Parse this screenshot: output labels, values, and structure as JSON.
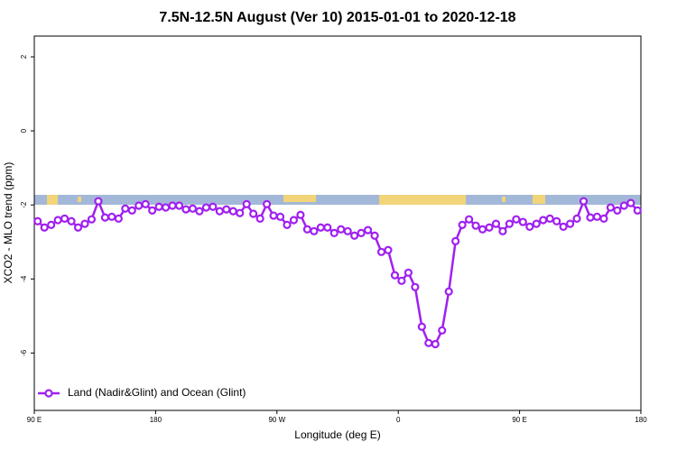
{
  "chart_data": {
    "type": "line",
    "title": "7.5N-12.5N August (Ver 10)   2015-01-01 to 2020-12-18",
    "x_label": "Longitude (deg E)",
    "y_label": "XCO2 - MLO trend (ppm)",
    "x": [
      92.5,
      97.5,
      102.5,
      107.5,
      112.5,
      117.5,
      122.5,
      127.5,
      132.5,
      137.5,
      142.5,
      147.5,
      152.5,
      157.5,
      162.5,
      167.5,
      172.5,
      177.5,
      182.5,
      187.5,
      192.5,
      197.5,
      202.5,
      207.5,
      212.5,
      217.5,
      222.5,
      227.5,
      232.5,
      237.5,
      242.5,
      247.5,
      252.5,
      257.5,
      262.5,
      267.5,
      272.5,
      277.5,
      282.5,
      287.5,
      292.5,
      297.5,
      302.5,
      307.5,
      312.5,
      317.5,
      322.5,
      327.5,
      332.5,
      337.5,
      342.5,
      347.5,
      352.5,
      357.5,
      362.5,
      367.5,
      372.5,
      377.5,
      382.5,
      387.5,
      392.5,
      397.5,
      402.5,
      407.5,
      412.5,
      417.5,
      422.5,
      427.5,
      432.5,
      437.5,
      442.5,
      447.5,
      452.5,
      457.5,
      462.5,
      467.5,
      472.5,
      477.5,
      482.5,
      487.5,
      492.5,
      497.5,
      502.5,
      507.5,
      512.5,
      517.5,
      522.5,
      527.5,
      532.5,
      537.5
    ],
    "series": [
      {
        "name": "Land (Nadir&Glint) and Ocean (Glint)",
        "color": "#a020f0",
        "values": [
          -2.44,
          -2.61,
          -2.54,
          -2.41,
          -2.37,
          -2.44,
          -2.61,
          -2.51,
          -2.39,
          -1.9,
          -2.34,
          -2.32,
          -2.37,
          -2.1,
          -2.15,
          -2.02,
          -1.98,
          -2.15,
          -2.05,
          -2.07,
          -2.02,
          -2.02,
          -2.12,
          -2.1,
          -2.17,
          -2.07,
          -2.05,
          -2.17,
          -2.12,
          -2.17,
          -2.22,
          -1.98,
          -2.24,
          -2.37,
          -1.98,
          -2.29,
          -2.32,
          -2.54,
          -2.41,
          -2.27,
          -2.66,
          -2.71,
          -2.61,
          -2.61,
          -2.76,
          -2.66,
          -2.71,
          -2.83,
          -2.76,
          -2.68,
          -2.83,
          -3.27,
          -3.22,
          -3.9,
          -4.05,
          -3.83,
          -4.22,
          -5.29,
          -5.73,
          -5.76,
          -5.39,
          -4.34,
          -2.98,
          -2.54,
          -2.39,
          -2.56,
          -2.66,
          -2.61,
          -2.51,
          -2.71,
          -2.51,
          -2.39,
          -2.46,
          -2.59,
          -2.51,
          -2.41,
          -2.37,
          -2.44,
          -2.59,
          -2.51,
          -2.37,
          -1.9,
          -2.34,
          -2.32,
          -2.37,
          -2.07,
          -2.15,
          -2.02,
          -1.95,
          -2.15
        ]
      }
    ],
    "xlim": [
      90,
      540
    ],
    "xticks": [
      {
        "value": 90,
        "label": "90 E"
      },
      180,
      {
        "value": 270,
        "label": "90 W"
      },
      {
        "value": 360,
        "label": "0"
      },
      {
        "value": 450,
        "label": "90 E"
      },
      {
        "value": 540,
        "label": "180"
      }
    ],
    "ylim": [
      -7.55,
      2.56
    ],
    "yticks": [
      2,
      0,
      -2,
      -4,
      -6
    ],
    "legend": "bottom-left"
  }
}
